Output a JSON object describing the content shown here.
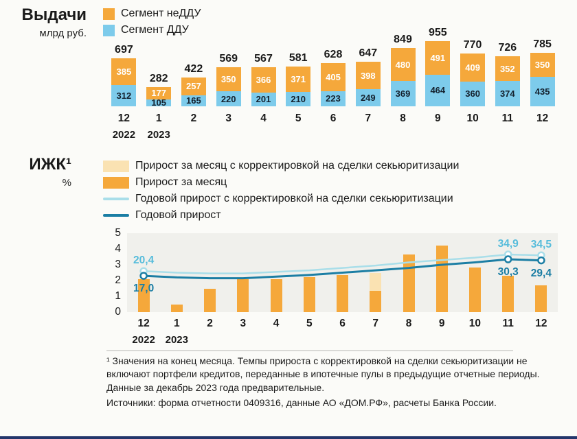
{
  "colors": {
    "orange": "#F5A83B",
    "blue": "#7DCBEB",
    "cream": "#FAE2B2",
    "light_line": "#A9DEE9",
    "dark_line": "#1B7EA4",
    "light_text": "#56BCDB",
    "plot_bg": "#F0F0EC",
    "accent_bar": "#23366B"
  },
  "chart_data": [
    {
      "type": "bar",
      "stacked": true,
      "title": "Выдачи",
      "unit": "млрд руб.",
      "categories": [
        "12",
        "1",
        "2",
        "3",
        "4",
        "5",
        "6",
        "7",
        "8",
        "9",
        "10",
        "11",
        "12"
      ],
      "year_labels": [
        {
          "index": 0,
          "label": "2022"
        },
        {
          "index": 1,
          "label": "2023"
        }
      ],
      "totals": [
        697,
        282,
        422,
        569,
        567,
        581,
        628,
        647,
        849,
        955,
        770,
        726,
        785
      ],
      "legend": [
        {
          "key": "neddu",
          "label": "Сегмент неДДУ",
          "color_key": "orange",
          "swatch": "square"
        },
        {
          "key": "ddu",
          "label": "Сегмент ДДУ",
          "color_key": "blue",
          "swatch": "square"
        }
      ],
      "series": [
        {
          "key": "neddu",
          "name": "Сегмент неДДУ",
          "color_key": "orange",
          "values": [
            385,
            177,
            257,
            350,
            366,
            371,
            405,
            398,
            480,
            491,
            409,
            352,
            350
          ]
        },
        {
          "key": "ddu",
          "name": "Сегмент ДДУ",
          "color_key": "blue",
          "values": [
            312,
            105,
            165,
            220,
            201,
            210,
            223,
            249,
            369,
            464,
            360,
            374,
            435
          ]
        }
      ]
    },
    {
      "type": "combo",
      "title": "ИЖК¹",
      "unit": "%",
      "ylim": [
        0,
        5
      ],
      "yticks": [
        0,
        1,
        2,
        3,
        4,
        5
      ],
      "categories": [
        "12",
        "1",
        "2",
        "3",
        "4",
        "5",
        "6",
        "7",
        "8",
        "9",
        "10",
        "11",
        "12"
      ],
      "year_labels": [
        {
          "index": 0,
          "label": "2022"
        },
        {
          "index": 1,
          "label": "2023"
        }
      ],
      "legend": [
        {
          "key": "month_adj",
          "label": "Прирост за месяц с корректировкой на сделки секьюритизации",
          "color_key": "cream",
          "swatch": "wide"
        },
        {
          "key": "month",
          "label": "Прирост за месяц",
          "color_key": "orange",
          "swatch": "wide"
        },
        {
          "key": "annual_adj",
          "label": "Годовой прирост с корректировкой на сделки секьюритизации",
          "color_key": "light_line",
          "swatch": "line"
        },
        {
          "key": "annual",
          "label": "Годовой прирост",
          "color_key": "dark_line",
          "swatch": "line"
        }
      ],
      "bar_series": [
        {
          "key": "month_adj",
          "name": "Прирост за месяц с корректировкой на сделки секьюритизации",
          "color_key": "cream",
          "values": [
            2.1,
            0.5,
            1.5,
            2.1,
            2.1,
            2.2,
            2.35,
            2.5,
            3.65,
            4.2,
            2.85,
            2.3,
            1.7
          ]
        },
        {
          "key": "month",
          "name": "Прирост за месяц",
          "color_key": "orange",
          "values": [
            2.1,
            0.5,
            1.5,
            2.1,
            2.1,
            2.2,
            2.35,
            1.35,
            3.65,
            4.2,
            2.85,
            2.3,
            1.7
          ]
        }
      ],
      "line_series": [
        {
          "key": "annual_adj",
          "name": "Годовой прирост с корректировкой на сделки секьюритизации",
          "color_key": "light_line",
          "stroke_width": 2.5,
          "values": [
            2.6,
            2.5,
            2.45,
            2.45,
            2.55,
            2.65,
            2.8,
            2.95,
            3.15,
            3.3,
            3.45,
            3.65,
            3.6
          ]
        },
        {
          "key": "annual",
          "name": "Годовой прирост",
          "color_key": "dark_line",
          "stroke_width": 3,
          "values": [
            2.3,
            2.2,
            2.15,
            2.15,
            2.25,
            2.35,
            2.5,
            2.65,
            2.8,
            3.0,
            3.15,
            3.35,
            3.28
          ]
        }
      ],
      "marker_indices": [
        0,
        11,
        12
      ],
      "annotations": [
        {
          "text": "20,4",
          "index": 0,
          "series": "annual_adj",
          "placement": "above",
          "color_key": "light_text"
        },
        {
          "text": "17,0",
          "index": 0,
          "series": "annual",
          "placement": "below",
          "color_key": "dark_line"
        },
        {
          "text": "34,9",
          "index": 11,
          "series": "annual_adj",
          "placement": "above",
          "color_key": "light_text"
        },
        {
          "text": "30,3",
          "index": 11,
          "series": "annual",
          "placement": "below",
          "color_key": "dark_line"
        },
        {
          "text": "34,5",
          "index": 12,
          "series": "annual_adj",
          "placement": "above",
          "color_key": "light_text"
        },
        {
          "text": "29,4",
          "index": 12,
          "series": "annual",
          "placement": "below",
          "color_key": "dark_line"
        }
      ]
    }
  ],
  "footnote": {
    "note": "¹ Значения на конец месяца. Темпы прироста с корректировкой на сделки секьюритизации не включают портфели кредитов, переданные в ипотечные пулы в предыдущие отчетные периоды. Данные за декабрь 2023 года предварительные.",
    "sources": "Источники: форма отчетности 0409316, данные АО «ДОМ.РФ», расчеты Банка России."
  }
}
